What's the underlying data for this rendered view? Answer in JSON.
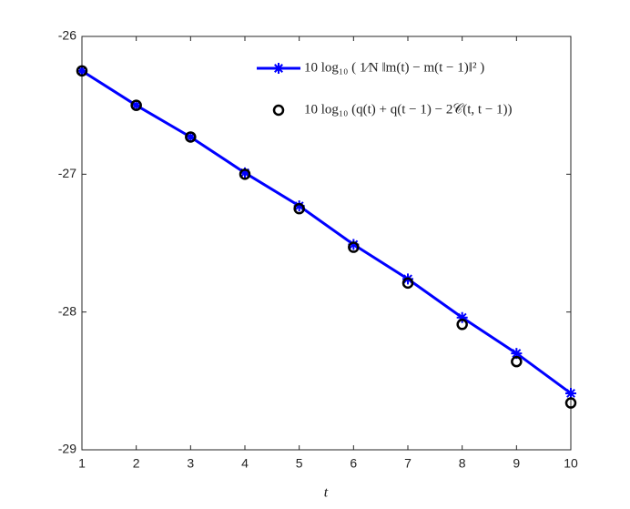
{
  "chart_data": {
    "type": "line",
    "x_label": "t",
    "x": [
      1,
      2,
      3,
      4,
      5,
      6,
      7,
      8,
      9,
      10
    ],
    "xlim": [
      1,
      10
    ],
    "xticks": [
      1,
      2,
      3,
      4,
      5,
      6,
      7,
      8,
      9,
      10
    ],
    "ylim": [
      -29,
      -26
    ],
    "yticks": [
      -29,
      -28,
      -27,
      -26
    ],
    "legend": "upper right",
    "series": [
      {
        "name": "10 log₁₀ ( 1⁄N ‖m(t) − m(t − 1)‖² )",
        "color": "#0000ff",
        "style": "line-asterisk",
        "values": [
          -26.25,
          -26.5,
          -26.73,
          -26.99,
          -27.23,
          -27.51,
          -27.76,
          -28.04,
          -28.3,
          -28.59
        ]
      },
      {
        "name": "10 log₁₀ (q(t) + q(t − 1) − 2𝒞(t, t − 1))",
        "color": "#000000",
        "style": "circle",
        "values": [
          -26.25,
          -26.5,
          -26.73,
          -27.0,
          -27.25,
          -27.53,
          -27.79,
          -28.09,
          -28.36,
          -28.66
        ]
      }
    ]
  }
}
